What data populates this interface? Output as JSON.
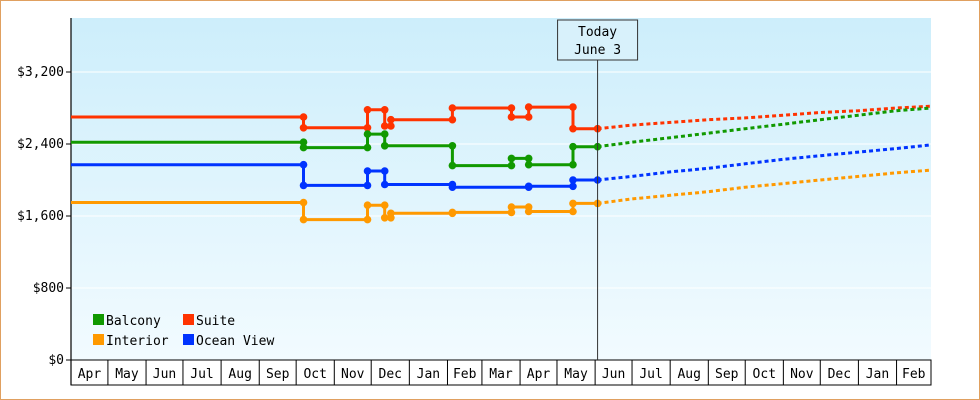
{
  "chart_data": {
    "type": "line",
    "title": "",
    "xlabel": "",
    "ylabel": "",
    "ylim": [
      0,
      3800
    ],
    "yticks": [
      {
        "value": 0,
        "label": "$0"
      },
      {
        "value": 800,
        "label": "$800"
      },
      {
        "value": 1600,
        "label": "$1,600"
      },
      {
        "value": 2400,
        "label": "$2,400"
      },
      {
        "value": 3200,
        "label": "$3,200"
      }
    ],
    "x_start": "2012-04-01",
    "x_end": "2014-03-01",
    "months": [
      {
        "date": "2012-04-01",
        "label": "Apr"
      },
      {
        "date": "2012-05-01",
        "label": "May"
      },
      {
        "date": "2012-06-01",
        "label": "Jun"
      },
      {
        "date": "2012-07-01",
        "label": "Jul"
      },
      {
        "date": "2012-08-01",
        "label": "Aug"
      },
      {
        "date": "2012-09-01",
        "label": "Sep"
      },
      {
        "date": "2012-10-01",
        "label": "Oct"
      },
      {
        "date": "2012-11-01",
        "label": "Nov"
      },
      {
        "date": "2012-12-01",
        "label": "Dec"
      },
      {
        "date": "2013-01-01",
        "label": "Jan"
      },
      {
        "date": "2013-02-01",
        "label": "Feb"
      },
      {
        "date": "2013-03-01",
        "label": "Mar"
      },
      {
        "date": "2013-04-01",
        "label": "Apr"
      },
      {
        "date": "2013-05-01",
        "label": "May"
      },
      {
        "date": "2013-06-01",
        "label": "Jun"
      },
      {
        "date": "2013-07-01",
        "label": "Jul"
      },
      {
        "date": "2013-08-01",
        "label": "Aug"
      },
      {
        "date": "2013-09-01",
        "label": "Sep"
      },
      {
        "date": "2013-10-01",
        "label": "Oct"
      },
      {
        "date": "2013-11-01",
        "label": "Nov"
      },
      {
        "date": "2013-12-01",
        "label": "Dec"
      },
      {
        "date": "2014-01-01",
        "label": "Jan"
      },
      {
        "date": "2014-02-01",
        "label": "Feb"
      }
    ],
    "today": {
      "date": "2013-06-03",
      "label_line1": "Today",
      "label_line2": "June 3"
    },
    "legend": {
      "placement": "bottom-left",
      "order": [
        "Balcony",
        "Suite",
        "Interior",
        "Ocean View"
      ]
    },
    "series": [
      {
        "name": "Suite",
        "color": "#ff3300",
        "steps": [
          [
            "2012-04-01",
            2700
          ],
          [
            "2012-10-07",
            2700
          ],
          [
            "2012-10-07",
            2580
          ],
          [
            "2012-11-28",
            2580
          ],
          [
            "2012-11-28",
            2780
          ],
          [
            "2012-12-12",
            2780
          ],
          [
            "2012-12-12",
            2600
          ],
          [
            "2012-12-17",
            2600
          ],
          [
            "2012-12-17",
            2670
          ],
          [
            "2013-02-05",
            2670
          ],
          [
            "2013-02-05",
            2800
          ],
          [
            "2013-03-25",
            2800
          ],
          [
            "2013-03-25",
            2700
          ],
          [
            "2013-04-08",
            2700
          ],
          [
            "2013-04-08",
            2810
          ],
          [
            "2013-05-14",
            2810
          ],
          [
            "2013-05-14",
            2570
          ],
          [
            "2013-06-03",
            2570
          ]
        ],
        "forecast": [
          [
            "2013-06-03",
            2570
          ],
          [
            "2013-07-01",
            2610
          ],
          [
            "2013-08-01",
            2640
          ],
          [
            "2013-09-01",
            2670
          ],
          [
            "2013-10-01",
            2690
          ],
          [
            "2013-11-01",
            2720
          ],
          [
            "2013-12-01",
            2750
          ],
          [
            "2014-01-01",
            2770
          ],
          [
            "2014-02-01",
            2800
          ],
          [
            "2014-03-01",
            2820
          ]
        ]
      },
      {
        "name": "Balcony",
        "color": "#119900",
        "steps": [
          [
            "2012-04-01",
            2420
          ],
          [
            "2012-10-07",
            2420
          ],
          [
            "2012-10-07",
            2360
          ],
          [
            "2012-11-28",
            2360
          ],
          [
            "2012-11-28",
            2510
          ],
          [
            "2012-12-12",
            2510
          ],
          [
            "2012-12-12",
            2380
          ],
          [
            "2013-02-05",
            2380
          ],
          [
            "2013-02-05",
            2160
          ],
          [
            "2013-03-25",
            2160
          ],
          [
            "2013-03-25",
            2240
          ],
          [
            "2013-04-08",
            2240
          ],
          [
            "2013-04-08",
            2170
          ],
          [
            "2013-05-14",
            2170
          ],
          [
            "2013-05-14",
            2370
          ],
          [
            "2013-06-03",
            2370
          ]
        ],
        "forecast": [
          [
            "2013-06-03",
            2370
          ],
          [
            "2013-07-01",
            2420
          ],
          [
            "2013-08-01",
            2470
          ],
          [
            "2013-09-01",
            2520
          ],
          [
            "2013-10-01",
            2570
          ],
          [
            "2013-11-01",
            2620
          ],
          [
            "2013-12-01",
            2670
          ],
          [
            "2014-01-01",
            2720
          ],
          [
            "2014-02-01",
            2770
          ],
          [
            "2014-03-01",
            2800
          ]
        ]
      },
      {
        "name": "Ocean View",
        "color": "#0033ff",
        "steps": [
          [
            "2012-04-01",
            2170
          ],
          [
            "2012-10-07",
            2170
          ],
          [
            "2012-10-07",
            1940
          ],
          [
            "2012-11-28",
            1940
          ],
          [
            "2012-11-28",
            2100
          ],
          [
            "2012-12-12",
            2100
          ],
          [
            "2012-12-12",
            1950
          ],
          [
            "2013-02-05",
            1950
          ],
          [
            "2013-02-05",
            1920
          ],
          [
            "2013-04-08",
            1920
          ],
          [
            "2013-04-08",
            1930
          ],
          [
            "2013-05-14",
            1930
          ],
          [
            "2013-05-14",
            2000
          ],
          [
            "2013-06-03",
            2000
          ]
        ],
        "forecast": [
          [
            "2013-06-03",
            2000
          ],
          [
            "2013-07-01",
            2040
          ],
          [
            "2013-08-01",
            2090
          ],
          [
            "2013-09-01",
            2130
          ],
          [
            "2013-10-01",
            2180
          ],
          [
            "2013-11-01",
            2230
          ],
          [
            "2013-12-01",
            2270
          ],
          [
            "2014-01-01",
            2310
          ],
          [
            "2014-02-01",
            2350
          ],
          [
            "2014-03-01",
            2390
          ]
        ]
      },
      {
        "name": "Interior",
        "color": "#ff9900",
        "steps": [
          [
            "2012-04-01",
            1750
          ],
          [
            "2012-10-07",
            1750
          ],
          [
            "2012-10-07",
            1560
          ],
          [
            "2012-11-28",
            1560
          ],
          [
            "2012-11-28",
            1720
          ],
          [
            "2012-12-12",
            1720
          ],
          [
            "2012-12-12",
            1580
          ],
          [
            "2012-12-17",
            1580
          ],
          [
            "2012-12-17",
            1630
          ],
          [
            "2013-02-05",
            1630
          ],
          [
            "2013-02-05",
            1640
          ],
          [
            "2013-03-25",
            1640
          ],
          [
            "2013-03-25",
            1700
          ],
          [
            "2013-04-08",
            1700
          ],
          [
            "2013-04-08",
            1650
          ],
          [
            "2013-05-14",
            1650
          ],
          [
            "2013-05-14",
            1740
          ],
          [
            "2013-06-03",
            1740
          ]
        ],
        "forecast": [
          [
            "2013-06-03",
            1740
          ],
          [
            "2013-07-01",
            1790
          ],
          [
            "2013-08-01",
            1830
          ],
          [
            "2013-09-01",
            1870
          ],
          [
            "2013-10-01",
            1920
          ],
          [
            "2013-11-01",
            1960
          ],
          [
            "2013-12-01",
            2000
          ],
          [
            "2014-01-01",
            2040
          ],
          [
            "2014-02-01",
            2080
          ],
          [
            "2014-03-01",
            2110
          ]
        ]
      }
    ]
  }
}
